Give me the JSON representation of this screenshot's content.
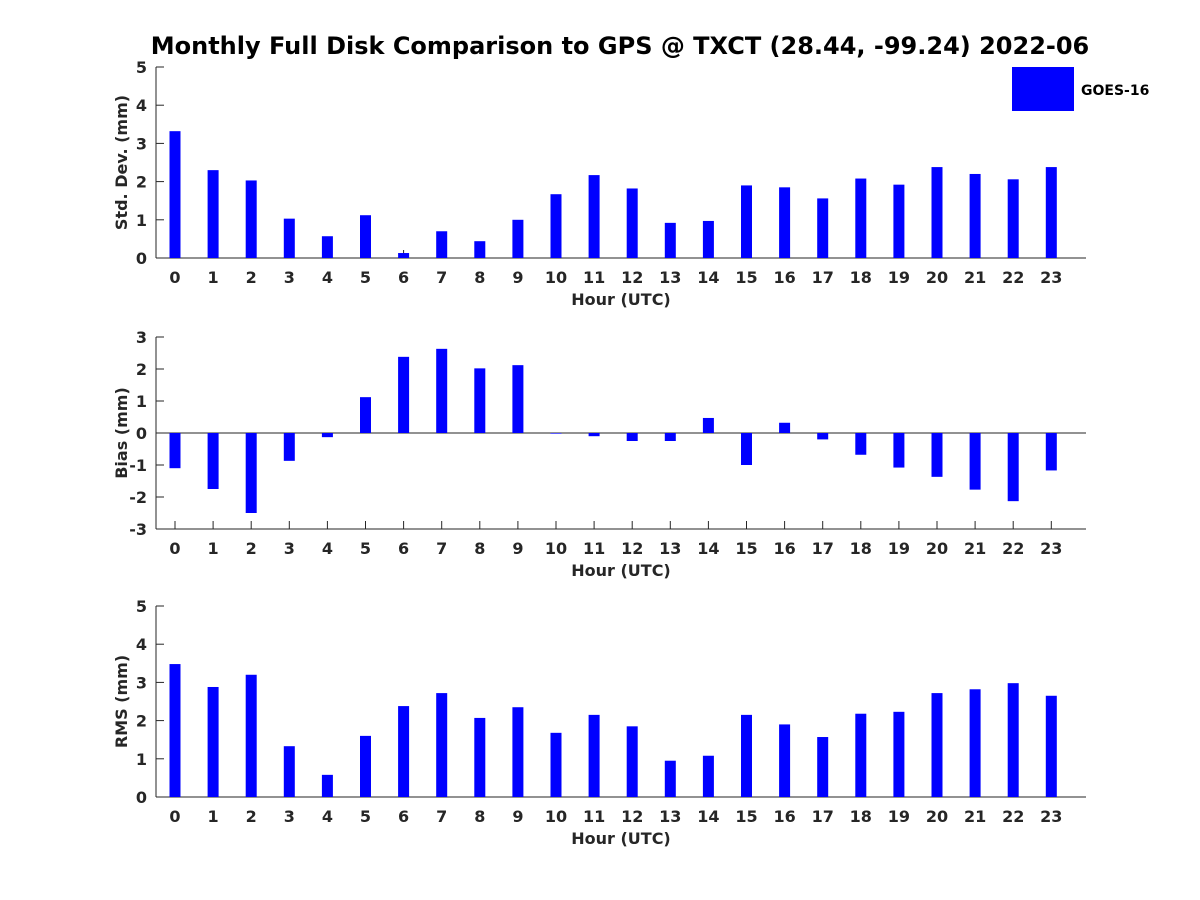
{
  "chart_data": {
    "type": "bar",
    "title": "Monthly Full Disk Comparison to GPS @ TXCT (28.44, -99.24) 2022-06",
    "legend": {
      "entries": [
        "GOES-16"
      ],
      "placement": "top-right"
    },
    "color": "#0000ff",
    "categories": [
      0,
      1,
      2,
      3,
      4,
      5,
      6,
      7,
      8,
      9,
      10,
      11,
      12,
      13,
      14,
      15,
      16,
      17,
      18,
      19,
      20,
      21,
      22,
      23
    ],
    "panels": [
      {
        "id": "std",
        "ylabel": "Std. Dev. (mm)",
        "xlabel": "Hour (UTC)",
        "ylim": [
          0,
          5
        ],
        "yticks": [
          0,
          1,
          2,
          3,
          4,
          5
        ],
        "series": [
          {
            "name": "GOES-16",
            "values": [
              3.32,
              2.3,
              2.03,
              1.03,
              0.57,
              1.12,
              0.13,
              0.7,
              0.44,
              1.0,
              1.67,
              2.17,
              1.82,
              0.92,
              0.97,
              1.9,
              1.85,
              1.56,
              2.08,
              1.92,
              2.38,
              2.2,
              2.06,
              2.38
            ]
          }
        ]
      },
      {
        "id": "bias",
        "ylabel": "Bias (mm)",
        "xlabel": "Hour (UTC)",
        "ylim": [
          -3,
          3
        ],
        "yticks": [
          -3,
          -2,
          -1,
          0,
          1,
          2,
          3
        ],
        "series": [
          {
            "name": "GOES-16",
            "values": [
              -1.1,
              -1.75,
              -2.5,
              -0.87,
              -0.13,
              1.12,
              2.38,
              2.63,
              2.02,
              2.12,
              -0.02,
              -0.1,
              -0.25,
              -0.25,
              0.47,
              -1.0,
              0.32,
              -0.2,
              -0.68,
              -1.08,
              -1.37,
              -1.77,
              -2.13,
              -1.17
            ]
          }
        ]
      },
      {
        "id": "rms",
        "ylabel": "RMS (mm)",
        "xlabel": "Hour (UTC)",
        "ylim": [
          0,
          5
        ],
        "yticks": [
          0,
          1,
          2,
          3,
          4,
          5
        ],
        "series": [
          {
            "name": "GOES-16",
            "values": [
              3.48,
              2.88,
              3.2,
              1.33,
              0.58,
              1.6,
              2.38,
              2.72,
              2.07,
              2.35,
              1.68,
              2.15,
              1.85,
              0.95,
              1.08,
              2.15,
              1.9,
              1.57,
              2.18,
              2.23,
              2.72,
              2.82,
              2.98,
              2.65
            ]
          }
        ]
      }
    ]
  }
}
